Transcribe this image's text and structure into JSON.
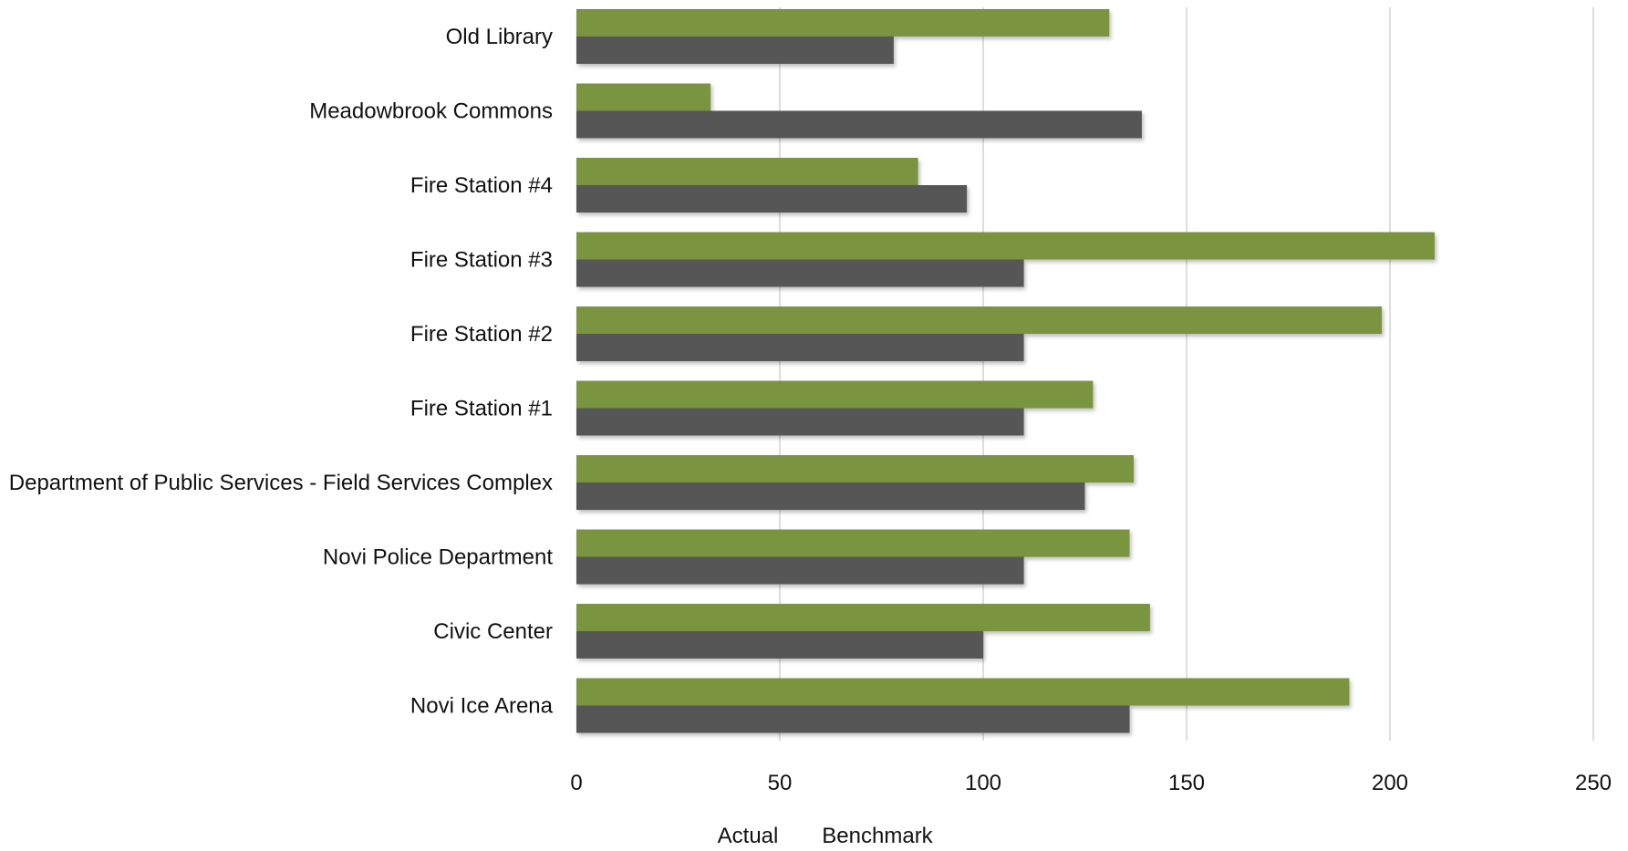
{
  "chart_data": {
    "type": "bar",
    "orientation": "horizontal",
    "categories": [
      "Old Library",
      "Meadowbrook Commons",
      "Fire Station #4",
      "Fire Station #3",
      "Fire Station #2",
      "Fire Station #1",
      "Department of Public Services - Field Services Complex",
      "Novi Police Department",
      "Civic Center",
      "Novi Ice Arena"
    ],
    "series": [
      {
        "name": "Actual",
        "color": "#7a9440",
        "values": [
          131,
          33,
          84,
          211,
          198,
          127,
          137,
          136,
          141,
          190
        ]
      },
      {
        "name": "Benchmark",
        "color": "#575757",
        "values": [
          78,
          139,
          96,
          110,
          110,
          110,
          125,
          110,
          100,
          136
        ]
      }
    ],
    "xlim": [
      0,
      250
    ],
    "xticks": [
      0,
      50,
      100,
      150,
      200,
      250
    ],
    "title": "",
    "xlabel": "",
    "ylabel": "",
    "grid": true,
    "legend_position": "bottom-center"
  }
}
